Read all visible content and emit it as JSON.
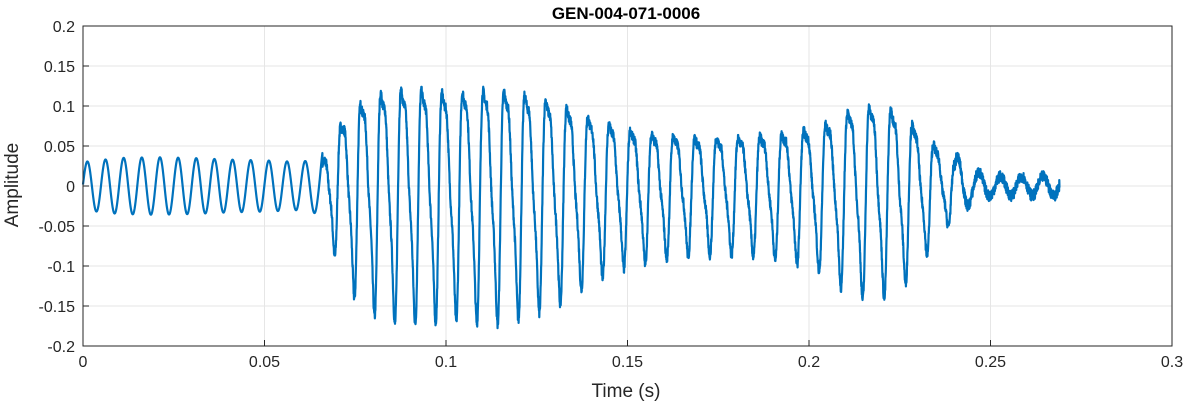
{
  "chart_data": {
    "type": "line",
    "title": "GEN-004-071-0006",
    "xlabel": "Time (s)",
    "ylabel": "Amplitude",
    "xlim": [
      0,
      0.3
    ],
    "ylim": [
      -0.2,
      0.2
    ],
    "xticks": [
      0,
      0.05,
      0.1,
      0.15,
      0.2,
      0.25,
      0.3
    ],
    "xtick_labels": [
      "0",
      "0.05",
      "0.1",
      "0.15",
      "0.2",
      "0.25",
      "0.3"
    ],
    "yticks": [
      -0.2,
      -0.15,
      -0.1,
      -0.05,
      0,
      0.05,
      0.1,
      0.15,
      0.2
    ],
    "ytick_labels": [
      "-0.2",
      "-0.15",
      "-0.1",
      "-0.05",
      "0",
      "0.05",
      "0.1",
      "0.15",
      "0.2"
    ],
    "grid": true,
    "line_color": "#0072bd",
    "series": [
      {
        "duration": 0.269,
        "envelope": [
          [
            0,
            0.03
          ],
          [
            0.01,
            0.035
          ],
          [
            0.02,
            0.036
          ],
          [
            0.03,
            0.035
          ],
          [
            0.04,
            0.033
          ],
          [
            0.05,
            0.032
          ],
          [
            0.06,
            0.03
          ],
          [
            0.065,
            0.035
          ],
          [
            0.068,
            0.07
          ],
          [
            0.072,
            0.12
          ],
          [
            0.075,
            0.14
          ],
          [
            0.08,
            0.16
          ],
          [
            0.085,
            0.17
          ],
          [
            0.09,
            0.17
          ],
          [
            0.095,
            0.17
          ],
          [
            0.1,
            0.165
          ],
          [
            0.11,
            0.17
          ],
          [
            0.115,
            0.17
          ],
          [
            0.12,
            0.165
          ],
          [
            0.13,
            0.15
          ],
          [
            0.14,
            0.12
          ],
          [
            0.15,
            0.1
          ],
          [
            0.16,
            0.09
          ],
          [
            0.17,
            0.085
          ],
          [
            0.18,
            0.085
          ],
          [
            0.19,
            0.09
          ],
          [
            0.2,
            0.1
          ],
          [
            0.205,
            0.11
          ],
          [
            0.21,
            0.13
          ],
          [
            0.215,
            0.14
          ],
          [
            0.22,
            0.14
          ],
          [
            0.225,
            0.13
          ],
          [
            0.23,
            0.1
          ],
          [
            0.235,
            0.07
          ],
          [
            0.24,
            0.04
          ],
          [
            0.245,
            0.02
          ],
          [
            0.25,
            0.012
          ],
          [
            0.269,
            0.012
          ]
        ],
        "frequency_hz": [
          [
            0,
            200
          ],
          [
            0.06,
            200
          ],
          [
            0.075,
            180
          ],
          [
            0.15,
            170
          ],
          [
            0.2,
            165
          ],
          [
            0.23,
            170
          ],
          [
            0.269,
            170
          ]
        ]
      }
    ]
  }
}
